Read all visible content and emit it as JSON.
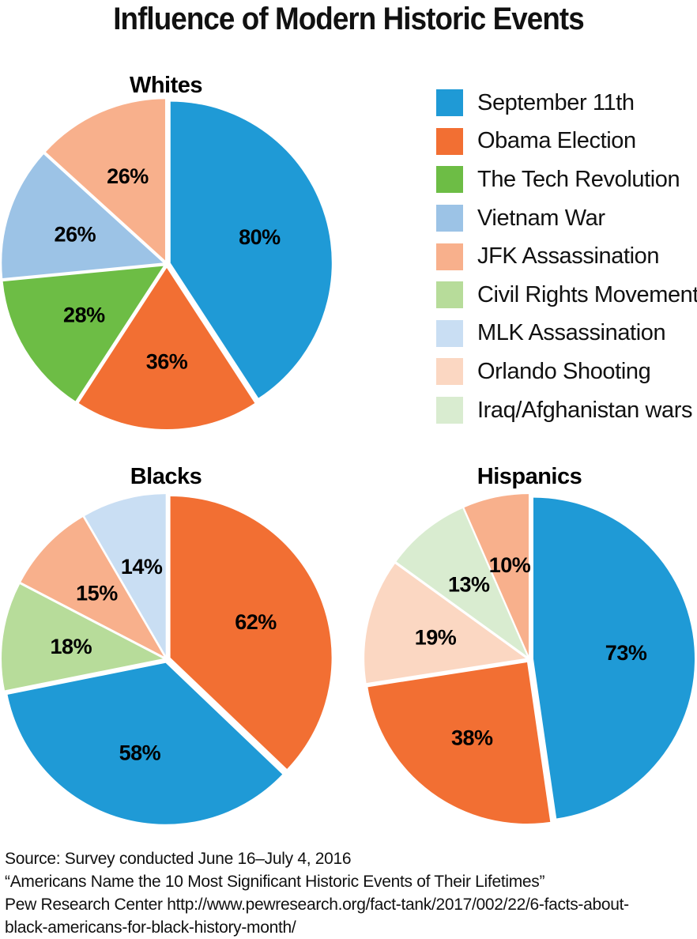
{
  "title": "Influence of Modern Historic Events",
  "legend": [
    {
      "label": "September 11th",
      "color": "#1f9ad6"
    },
    {
      "label": "Obama Election",
      "color": "#f26f33"
    },
    {
      "label": "The Tech Revolution",
      "color": "#6dbd45"
    },
    {
      "label": "Vietnam War",
      "color": "#9cc3e6"
    },
    {
      "label": "JFK Assassination",
      "color": "#f8b08c"
    },
    {
      "label": "Civil Rights Movement",
      "color": "#b7dc9a"
    },
    {
      "label": "MLK Assassination",
      "color": "#c9def3"
    },
    {
      "label": "Orlando Shooting",
      "color": "#fbd7c2"
    },
    {
      "label": "Iraq/Afghanistan wars",
      "color": "#d9ecd0"
    }
  ],
  "chart_data": [
    {
      "type": "pie",
      "title": "Whites",
      "slices": [
        {
          "name": "September 11th",
          "value": 80,
          "label": "80%",
          "color": "#1f9ad6"
        },
        {
          "name": "Obama Election",
          "value": 36,
          "label": "36%",
          "color": "#f26f33"
        },
        {
          "name": "The Tech Revolution",
          "value": 28,
          "label": "28%",
          "color": "#6dbd45"
        },
        {
          "name": "Vietnam War",
          "value": 26,
          "label": "26%",
          "color": "#9cc3e6"
        },
        {
          "name": "JFK Assassination",
          "value": 26,
          "label": "26%",
          "color": "#f8b08c"
        }
      ]
    },
    {
      "type": "pie",
      "title": "Blacks",
      "slices": [
        {
          "name": "Obama Election",
          "value": 62,
          "label": "62%",
          "color": "#f26f33"
        },
        {
          "name": "September 11th",
          "value": 58,
          "label": "58%",
          "color": "#1f9ad6"
        },
        {
          "name": "Civil Rights Movement",
          "value": 18,
          "label": "18%",
          "color": "#b7dc9a"
        },
        {
          "name": "JFK Assassination",
          "value": 15,
          "label": "15%",
          "color": "#f8b08c"
        },
        {
          "name": "MLK Assassination",
          "value": 14,
          "label": "14%",
          "color": "#c9def3"
        }
      ]
    },
    {
      "type": "pie",
      "title": "Hispanics",
      "slices": [
        {
          "name": "September 11th",
          "value": 73,
          "label": "73%",
          "color": "#1f9ad6"
        },
        {
          "name": "Obama Election",
          "value": 38,
          "label": "38%",
          "color": "#f26f33"
        },
        {
          "name": "Orlando Shooting",
          "value": 19,
          "label": "19%",
          "color": "#fbd7c2"
        },
        {
          "name": "Iraq/Afghanistan wars",
          "value": 13,
          "label": "13%",
          "color": "#d9ecd0"
        },
        {
          "name": "JFK Assassination",
          "value": 10,
          "label": "10%",
          "color": "#f8b08c"
        }
      ]
    }
  ],
  "source": {
    "line1": "Source: Survey conducted June 16–July 4, 2016",
    "line2": "“Americans Name the 10 Most Significant Historic Events of Their Lifetimes”",
    "line3": "Pew Research Center http://www.pewresearch.org/fact-tank/2017/002/22/6-facts-about-",
    "line4": "black-americans-for-black-history-month/"
  }
}
